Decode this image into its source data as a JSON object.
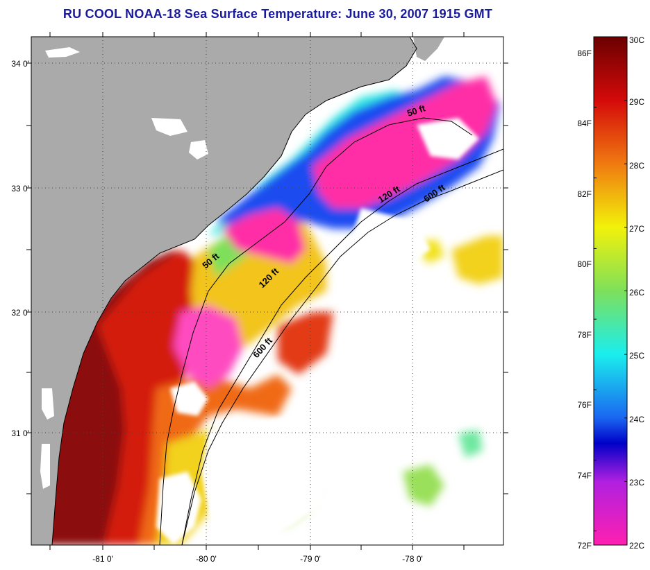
{
  "title": "RU COOL  NOAA-18  Sea Surface Temperature:  June 30, 2007 1915 GMT",
  "map": {
    "lat_labels": [
      "34 0'",
      "33 0'",
      "32 0'",
      "31 0'"
    ],
    "lon_labels": [
      "-81 0'",
      "-80 0'",
      "-79 0'",
      "-78 0'"
    ],
    "isobath_labels": [
      "50 ft",
      "120 ft",
      "600 ft",
      "50 ft",
      "120 ft",
      "600 ft"
    ],
    "colors": {
      "land": "#aaaaaa",
      "cloud": "#ffffff",
      "hot": "#8b0a0a",
      "red": "#d41a0a",
      "orange": "#f06a14",
      "yellow": "#f2e21a",
      "green": "#7ee05a",
      "cyan": "#2ee8e0",
      "blue": "#1a4cf0",
      "magenta": "#ff2ea6"
    }
  },
  "colorbar": {
    "celsius_labels": [
      "30C",
      "29C",
      "28C",
      "27C",
      "26C",
      "25C",
      "24C",
      "23C",
      "22C"
    ],
    "fahrenheit_labels": [
      "86F",
      "84F",
      "82F",
      "80F",
      "78F",
      "76F",
      "74F",
      "72F"
    ],
    "range_c": [
      22,
      30
    ]
  }
}
